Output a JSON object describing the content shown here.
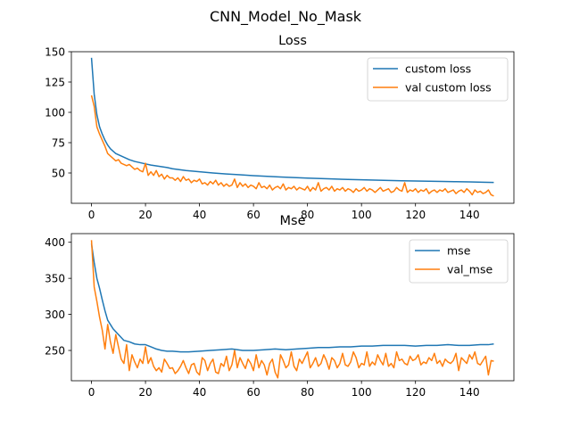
{
  "figure": {
    "suptitle": "CNN_Model_No_Mask"
  },
  "colors": {
    "blue": "#1f77b4",
    "orange": "#ff7f0e"
  },
  "chart_data": [
    {
      "type": "line",
      "title": "Loss",
      "xlabel": "",
      "ylabel": "",
      "xlim": [
        -7.45,
        156.45
      ],
      "ylim": [
        25,
        150
      ],
      "xticks": [
        0,
        20,
        40,
        60,
        80,
        100,
        120,
        140
      ],
      "yticks": [
        50,
        75,
        100,
        125,
        150
      ],
      "grid": false,
      "legend": "top-right",
      "series": [
        {
          "name": "custom loss",
          "color": "#1f77b4",
          "x": [
            0,
            1,
            2,
            3,
            4,
            5,
            6,
            7,
            8,
            9,
            10,
            12,
            14,
            16,
            18,
            20,
            22,
            25,
            28,
            30,
            35,
            40,
            45,
            50,
            55,
            60,
            65,
            70,
            75,
            80,
            85,
            90,
            95,
            100,
            105,
            110,
            115,
            120,
            125,
            130,
            135,
            140,
            145,
            149
          ],
          "values": [
            145,
            115,
            98,
            88,
            82,
            77,
            73,
            70,
            68,
            66,
            65,
            63,
            61,
            59.5,
            58.5,
            57.5,
            56.5,
            55.5,
            54.5,
            53.5,
            52,
            51,
            50,
            49.2,
            48.5,
            47.8,
            47.2,
            46.7,
            46.2,
            45.8,
            45.4,
            45,
            44.7,
            44.4,
            44.1,
            43.8,
            43.6,
            43.4,
            43.2,
            43,
            42.8,
            42.6,
            42.4,
            42.2
          ]
        },
        {
          "name": "val custom loss",
          "color": "#ff7f0e",
          "x": [
            0,
            1,
            2,
            3,
            4,
            5,
            6,
            7,
            8,
            9,
            10,
            11,
            12,
            13,
            14,
            15,
            16,
            17,
            18,
            19,
            20,
            21,
            22,
            23,
            24,
            25,
            26,
            27,
            28,
            29,
            30,
            31,
            32,
            33,
            34,
            35,
            36,
            37,
            38,
            39,
            40,
            41,
            42,
            43,
            44,
            45,
            46,
            47,
            48,
            49,
            50,
            51,
            52,
            53,
            54,
            55,
            56,
            57,
            58,
            59,
            60,
            61,
            62,
            63,
            64,
            65,
            66,
            67,
            68,
            69,
            70,
            71,
            72,
            73,
            74,
            75,
            76,
            77,
            78,
            79,
            80,
            81,
            82,
            83,
            84,
            85,
            86,
            87,
            88,
            89,
            90,
            91,
            92,
            93,
            94,
            95,
            96,
            97,
            98,
            99,
            100,
            101,
            102,
            103,
            104,
            105,
            106,
            107,
            108,
            109,
            110,
            111,
            112,
            113,
            114,
            115,
            116,
            117,
            118,
            119,
            120,
            121,
            122,
            123,
            124,
            125,
            126,
            127,
            128,
            129,
            130,
            131,
            132,
            133,
            134,
            135,
            136,
            137,
            138,
            139,
            140,
            141,
            142,
            143,
            144,
            145,
            146,
            147,
            148,
            149
          ],
          "values": [
            114,
            105,
            88,
            82,
            77,
            72,
            66,
            64,
            62,
            60,
            61,
            58,
            57,
            56,
            57,
            55,
            53,
            54,
            52,
            51,
            58,
            48,
            51,
            48,
            52,
            47,
            49,
            45,
            48,
            46,
            46,
            44,
            46,
            43,
            47,
            44,
            45,
            42,
            44,
            43,
            45,
            41,
            42,
            40,
            43,
            41,
            44,
            40,
            42,
            39,
            41,
            39,
            40,
            45,
            38,
            42,
            39,
            41,
            38,
            40,
            39,
            37,
            42,
            38,
            39,
            37,
            40,
            36,
            38,
            39,
            37,
            41,
            36,
            38,
            37,
            39,
            36,
            38,
            37,
            36,
            39,
            35,
            38,
            36,
            42,
            35,
            37,
            38,
            36,
            39,
            35,
            37,
            36,
            38,
            35,
            37,
            36,
            34,
            37,
            35,
            36,
            38,
            35,
            37,
            36,
            34,
            36,
            38,
            35,
            36,
            37,
            34,
            35,
            38,
            36,
            35,
            42,
            34,
            36,
            35,
            37,
            34,
            36,
            35,
            37,
            33,
            35,
            36,
            34,
            36,
            35,
            37,
            34,
            35,
            36,
            33,
            35,
            36,
            34,
            37,
            35,
            32,
            36,
            34,
            35,
            33,
            34,
            36,
            32,
            31
          ]
        }
      ]
    },
    {
      "type": "line",
      "title": "Mse",
      "xlabel": "",
      "ylabel": "",
      "xlim": [
        -7.45,
        156.45
      ],
      "ylim": [
        208,
        412
      ],
      "xticks": [
        0,
        20,
        40,
        60,
        80,
        100,
        120,
        140
      ],
      "yticks": [
        250,
        300,
        350,
        400
      ],
      "grid": false,
      "legend": "top-right",
      "series": [
        {
          "name": "mse",
          "color": "#1f77b4",
          "x": [
            0,
            1,
            2,
            3,
            4,
            5,
            6,
            8,
            10,
            12,
            14,
            16,
            18,
            20,
            22,
            24,
            26,
            28,
            30,
            33,
            36,
            40,
            44,
            48,
            52,
            56,
            60,
            64,
            68,
            72,
            76,
            80,
            84,
            88,
            92,
            96,
            100,
            104,
            108,
            112,
            116,
            120,
            124,
            128,
            132,
            136,
            140,
            144,
            147,
            149
          ],
          "values": [
            398,
            372,
            350,
            336,
            320,
            305,
            292,
            280,
            272,
            264,
            262,
            259,
            258,
            258,
            255,
            252,
            250,
            249,
            249,
            248,
            248,
            249,
            250,
            251,
            252,
            250,
            250,
            251,
            252,
            251,
            252,
            253,
            254,
            254,
            255,
            255,
            256,
            256,
            257,
            257,
            257,
            256,
            257,
            257,
            258,
            257,
            257,
            258,
            258,
            259
          ]
        },
        {
          "name": "val_mse",
          "color": "#ff7f0e",
          "x": [
            0,
            1,
            2,
            3,
            4,
            5,
            6,
            7,
            8,
            9,
            10,
            11,
            12,
            13,
            14,
            15,
            16,
            17,
            18,
            19,
            20,
            21,
            22,
            23,
            24,
            25,
            26,
            27,
            28,
            29,
            30,
            31,
            32,
            33,
            34,
            35,
            36,
            37,
            38,
            39,
            40,
            41,
            42,
            43,
            44,
            45,
            46,
            47,
            48,
            49,
            50,
            51,
            52,
            53,
            54,
            55,
            56,
            57,
            58,
            59,
            60,
            61,
            62,
            63,
            64,
            65,
            66,
            67,
            68,
            69,
            70,
            71,
            72,
            73,
            74,
            75,
            76,
            77,
            78,
            79,
            80,
            81,
            82,
            83,
            84,
            85,
            86,
            87,
            88,
            89,
            90,
            91,
            92,
            93,
            94,
            95,
            96,
            97,
            98,
            99,
            100,
            101,
            102,
            103,
            104,
            105,
            106,
            107,
            108,
            109,
            110,
            111,
            112,
            113,
            114,
            115,
            116,
            117,
            118,
            119,
            120,
            121,
            122,
            123,
            124,
            125,
            126,
            127,
            128,
            129,
            130,
            131,
            132,
            133,
            134,
            135,
            136,
            137,
            138,
            139,
            140,
            141,
            142,
            143,
            144,
            145,
            146,
            147,
            148,
            149
          ],
          "values": [
            403,
            338,
            318,
            296,
            278,
            252,
            286,
            262,
            246,
            272,
            255,
            238,
            232,
            258,
            222,
            244,
            234,
            226,
            238,
            232,
            255,
            232,
            240,
            228,
            222,
            226,
            220,
            238,
            232,
            225,
            226,
            218,
            222,
            228,
            236,
            226,
            218,
            230,
            232,
            220,
            216,
            240,
            236,
            222,
            232,
            238,
            220,
            218,
            232,
            228,
            242,
            222,
            230,
            250,
            226,
            240,
            232,
            225,
            238,
            232,
            222,
            244,
            226,
            236,
            230,
            216,
            232,
            238,
            220,
            212,
            244,
            236,
            226,
            230,
            248,
            228,
            222,
            238,
            232,
            240,
            248,
            226,
            232,
            240,
            228,
            232,
            244,
            236,
            224,
            240,
            236,
            226,
            232,
            246,
            230,
            228,
            234,
            248,
            240,
            226,
            232,
            230,
            248,
            228,
            234,
            230,
            244,
            236,
            230,
            246,
            228,
            232,
            226,
            248,
            236,
            238,
            232,
            230,
            242,
            236,
            238,
            244,
            230,
            234,
            232,
            240,
            236,
            246,
            232,
            236,
            228,
            238,
            234,
            232,
            236,
            246,
            222,
            240,
            236,
            232,
            244,
            238,
            248,
            232,
            230,
            236,
            242,
            216,
            236,
            235
          ]
        }
      ]
    }
  ]
}
